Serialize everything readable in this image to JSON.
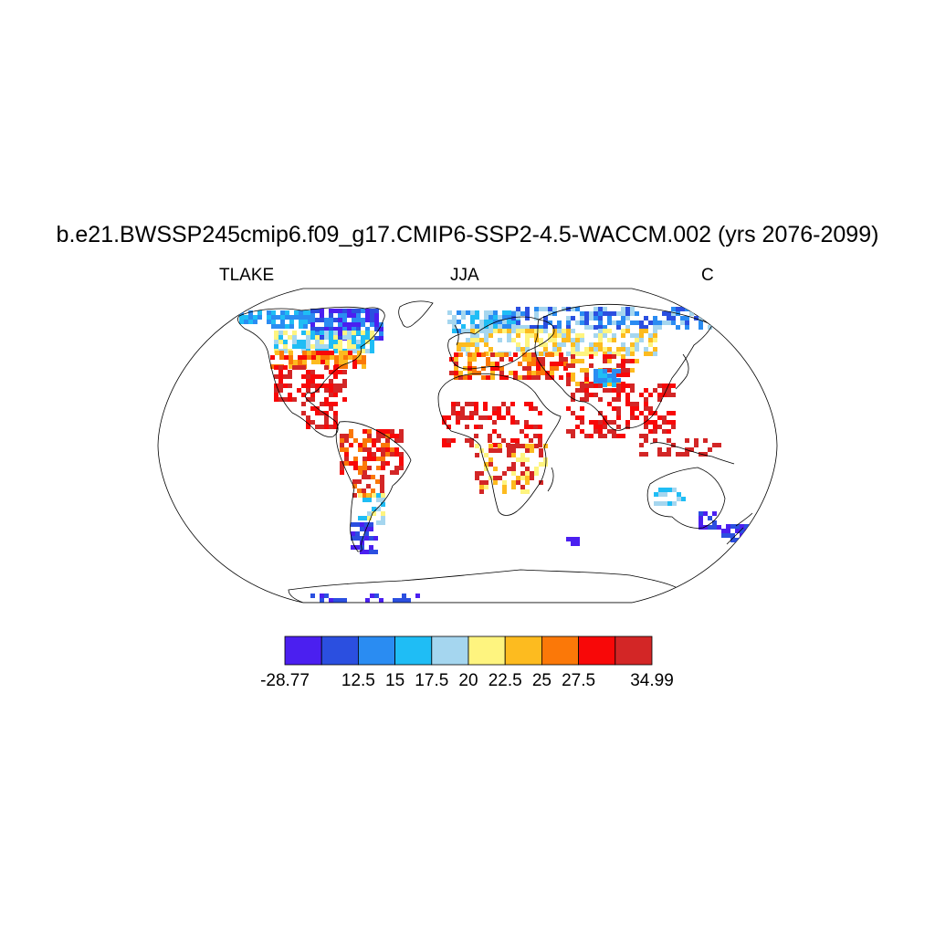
{
  "title": "b.e21.BWSSP245cmip6.f09_g17.CMIP6-SSP2-4.5-WACCM.002 (yrs 2076-2099)",
  "left_label": "TLAKE",
  "center_label": "JJA",
  "right_label": "C",
  "colorbar": {
    "colors": [
      "#4b1ff0",
      "#2b4fe0",
      "#2a8cf2",
      "#1fbdf5",
      "#a5d6ef",
      "#fef47f",
      "#fdbb1f",
      "#fb7808",
      "#f80808",
      "#d32626"
    ],
    "labels": [
      "-28.77",
      "12.5",
      "15",
      "17.5",
      "20",
      "22.5",
      "25",
      "27.5",
      "34.99"
    ]
  }
}
